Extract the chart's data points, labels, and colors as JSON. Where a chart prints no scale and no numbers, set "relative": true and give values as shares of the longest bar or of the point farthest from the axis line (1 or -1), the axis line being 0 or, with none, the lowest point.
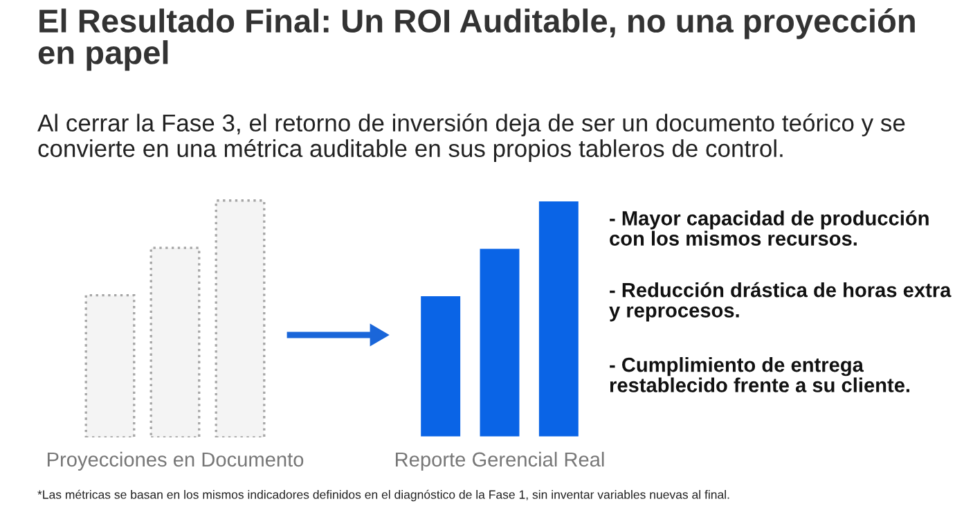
{
  "chart_data": [
    {
      "type": "bar",
      "relative": true,
      "title": "El Resultado Final: Un ROI Auditable, no una proyección en papel",
      "subtitle": "Al cerrar la Fase 3, el retorno de inversión deja de ser un documento teórico y se convierte en una métrica auditable en sus propios tableros de control.",
      "categories": [
        null,
        null,
        null
      ],
      "xlabel": "Proyecciones en Documento",
      "line_style": "dotted",
      "series": [
        {
          "color": "#f4f4f4",
          "values": [
            0.6,
            0.8,
            1
          ]
        }
      ],
      "annotations": [
        "*Las métricas se basan en los mismos indicadores definidos en el diagnóstico de la Fase 1, sin inventar variables nuevas al final."
      ]
    },
    {
      "type": "bar",
      "relative": true,
      "categories": [
        null,
        null,
        null
      ],
      "xlabel": "Reporte Gerencial Real",
      "series": [
        {
          "color": "#0a64e6",
          "values": [
            0.6,
            0.8,
            1
          ]
        }
      ],
      "annotations": [
        "- Mayor capacidad de producción con los mismos recursos.",
        "- Reducción drástica de horas extra y reprocesos.",
        "- Cumplimiento de entrega restablecido frente a su cliente."
      ]
    }
  ]
}
